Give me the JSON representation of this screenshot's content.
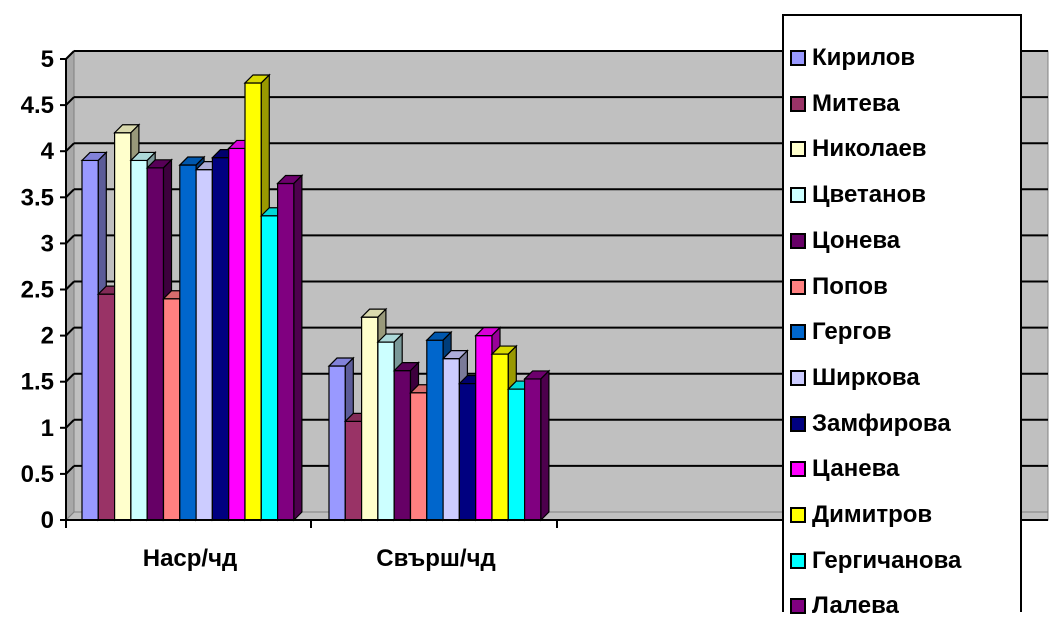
{
  "chart_data": {
    "type": "bar",
    "title": "",
    "xlabel": "",
    "ylabel": "",
    "categories": [
      "Наср/чд",
      "Свърш/чд"
    ],
    "ylim": [
      0,
      5
    ],
    "yticks": [
      "0",
      "0.5",
      "1",
      "1.5",
      "2",
      "2.5",
      "3",
      "3.5",
      "4",
      "4.5",
      "5"
    ],
    "grid": true,
    "legend_position": "right",
    "series": [
      {
        "name": "Кирилов",
        "color": "#9999FF",
        "values": [
          3.9,
          1.67
        ]
      },
      {
        "name": "Митева",
        "color": "#993366",
        "values": [
          2.45,
          1.07
        ]
      },
      {
        "name": "Николаев",
        "color": "#FFFFCC",
        "values": [
          4.2,
          2.2
        ]
      },
      {
        "name": "Цветанов",
        "color": "#CCFFFF",
        "values": [
          3.9,
          1.93
        ]
      },
      {
        "name": "Цонева",
        "color": "#660066",
        "values": [
          3.82,
          1.62
        ]
      },
      {
        "name": "Попов",
        "color": "#FF8080",
        "values": [
          2.4,
          1.38
        ]
      },
      {
        "name": "Гергов",
        "color": "#0066CC",
        "values": [
          3.85,
          1.95
        ]
      },
      {
        "name": "Ширкова",
        "color": "#CCCCFF",
        "values": [
          3.8,
          1.75
        ]
      },
      {
        "name": "Замфирова",
        "color": "#000080",
        "values": [
          3.93,
          1.48
        ]
      },
      {
        "name": "Цанева",
        "color": "#FF00FF",
        "values": [
          4.03,
          2.0
        ]
      },
      {
        "name": "Димитров",
        "color": "#FFFF00",
        "values": [
          4.74,
          1.8
        ]
      },
      {
        "name": "Гергичанова",
        "color": "#00FFFF",
        "values": [
          3.3,
          1.42
        ]
      },
      {
        "name": "Лалева",
        "color": "#800080",
        "values": [
          3.65,
          1.53
        ]
      }
    ]
  }
}
